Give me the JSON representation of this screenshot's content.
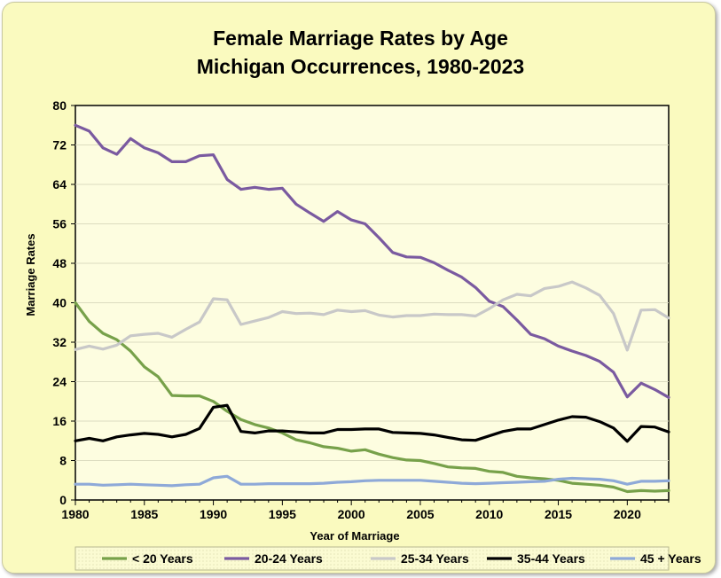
{
  "chart_data": {
    "type": "line",
    "title_line_1": "Female Marriage Rates by Age",
    "title_line_2": "Michigan Occurrences, 1980-2023",
    "xlabel": "Year of Marriage",
    "ylabel": "Marriage Rates",
    "xlim": [
      1980,
      2023
    ],
    "ylim": [
      0,
      80
    ],
    "yticks": [
      0,
      8,
      16,
      24,
      32,
      40,
      48,
      56,
      64,
      72,
      80
    ],
    "xticks": [
      1980,
      1985,
      1990,
      1995,
      2000,
      2005,
      2010,
      2015,
      2020
    ],
    "grid": true,
    "legend_position": "bottom",
    "x": [
      1980,
      1981,
      1982,
      1983,
      1984,
      1985,
      1986,
      1987,
      1988,
      1989,
      1990,
      1991,
      1992,
      1993,
      1994,
      1995,
      1996,
      1997,
      1998,
      1999,
      2000,
      2001,
      2002,
      2003,
      2004,
      2005,
      2006,
      2007,
      2008,
      2009,
      2010,
      2011,
      2012,
      2013,
      2014,
      2015,
      2016,
      2017,
      2018,
      2019,
      2020,
      2021,
      2022,
      2023
    ],
    "series": [
      {
        "name": "< 20 Years",
        "color": "#77a14a",
        "values": [
          40.0,
          36.2,
          33.8,
          32.5,
          30.2,
          27.0,
          25.0,
          21.2,
          21.1,
          21.1,
          20.0,
          18.0,
          16.3,
          15.3,
          14.6,
          13.6,
          12.2,
          11.6,
          10.8,
          10.5,
          9.9,
          10.2,
          9.3,
          8.6,
          8.1,
          8.0,
          7.4,
          6.7,
          6.5,
          6.4,
          5.8,
          5.6,
          4.8,
          4.5,
          4.3,
          4.0,
          3.4,
          3.2,
          3.0,
          2.6,
          1.7,
          1.9,
          1.8,
          1.9
        ]
      },
      {
        "name": "20-24 Years",
        "color": "#7a5aa0",
        "values": [
          76.0,
          74.8,
          71.4,
          70.1,
          73.3,
          71.4,
          70.4,
          68.6,
          68.6,
          69.8,
          70.0,
          65.0,
          63.0,
          63.4,
          63.0,
          63.2,
          60.0,
          58.2,
          56.5,
          58.5,
          56.8,
          56.0,
          53.2,
          50.2,
          49.3,
          49.2,
          48.1,
          46.6,
          45.2,
          43.1,
          40.3,
          39.2,
          36.5,
          33.6,
          32.7,
          31.2,
          30.2,
          29.3,
          28.1,
          25.9,
          20.9,
          23.7,
          22.4,
          20.8
        ]
      },
      {
        "name": "25-34 Years",
        "color": "#c8c8c8",
        "values": [
          30.5,
          31.2,
          30.6,
          31.4,
          33.3,
          33.6,
          33.8,
          33.0,
          34.6,
          36.1,
          40.8,
          40.6,
          35.6,
          36.3,
          37.0,
          38.2,
          37.8,
          37.9,
          37.6,
          38.5,
          38.2,
          38.4,
          37.5,
          37.1,
          37.4,
          37.4,
          37.7,
          37.6,
          37.6,
          37.3,
          38.8,
          40.6,
          41.7,
          41.4,
          42.9,
          43.3,
          44.2,
          43.0,
          41.5,
          37.8,
          30.4,
          38.5,
          38.6,
          36.9
        ]
      },
      {
        "name": "35-44 Years",
        "color": "#000000",
        "values": [
          12.0,
          12.5,
          12.0,
          12.8,
          13.2,
          13.5,
          13.3,
          12.8,
          13.3,
          14.5,
          18.8,
          19.2,
          13.9,
          13.6,
          14.0,
          14.0,
          13.8,
          13.6,
          13.6,
          14.3,
          14.3,
          14.4,
          14.4,
          13.7,
          13.6,
          13.5,
          13.2,
          12.7,
          12.2,
          12.1,
          13.0,
          13.9,
          14.4,
          14.4,
          15.3,
          16.2,
          16.9,
          16.8,
          15.9,
          14.6,
          11.9,
          14.9,
          14.8,
          13.8
        ]
      },
      {
        "name": "45 + Years",
        "color": "#8ea9d8",
        "values": [
          3.2,
          3.2,
          3.0,
          3.1,
          3.2,
          3.1,
          3.0,
          2.9,
          3.1,
          3.2,
          4.5,
          4.8,
          3.2,
          3.2,
          3.3,
          3.3,
          3.3,
          3.3,
          3.4,
          3.6,
          3.7,
          3.9,
          4.0,
          4.0,
          4.0,
          4.0,
          3.8,
          3.6,
          3.4,
          3.3,
          3.4,
          3.5,
          3.6,
          3.7,
          3.8,
          4.2,
          4.4,
          4.3,
          4.2,
          3.9,
          3.2,
          3.8,
          3.8,
          3.9
        ]
      }
    ]
  }
}
